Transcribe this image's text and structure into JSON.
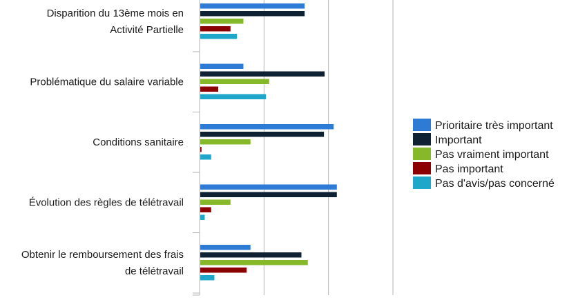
{
  "chart_data": {
    "type": "bar",
    "orientation": "horizontal",
    "categories": [
      [
        "Disparition du 13ème mois en",
        "Activité Partielle"
      ],
      [
        "Problématique du salaire variable"
      ],
      [
        "Conditions sanitaire"
      ],
      [
        "Évolution des règles de télétravail"
      ],
      [
        "Obtenir le remboursement des frais",
        "de télétravail"
      ]
    ],
    "series": [
      {
        "name": "Prioritaire très important",
        "color": "#2e7bd6",
        "values": [
          16.3,
          6.8,
          20.8,
          21.3,
          7.9
        ]
      },
      {
        "name": "Important",
        "color": "#0e2233",
        "values": [
          16.3,
          19.4,
          19.3,
          21.3,
          15.8
        ]
      },
      {
        "name": "Pas vraiment important",
        "color": "#86b92a",
        "values": [
          6.8,
          10.8,
          7.9,
          4.8,
          16.8
        ]
      },
      {
        "name": "Pas important",
        "color": "#8b0000",
        "values": [
          4.8,
          2.9,
          0.3,
          1.8,
          7.3
        ]
      },
      {
        "name": "Pas d'avis/pas concerné",
        "color": "#1ea7c9",
        "values": [
          5.8,
          10.3,
          1.8,
          0.8,
          2.3
        ]
      }
    ],
    "xlim": [
      0,
      30
    ],
    "grid": true,
    "legend": "right"
  }
}
